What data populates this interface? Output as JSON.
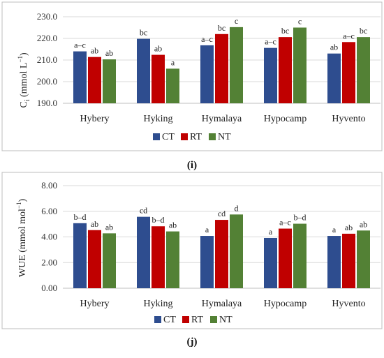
{
  "colors": {
    "CT": "#2e4d8f",
    "RT": "#c00000",
    "NT": "#538135"
  },
  "chart_data": [
    {
      "type": "bar",
      "panel_label": "(i)",
      "ylabel_main": "C",
      "ylabel_sub": "i",
      "ylabel_units": " (mmol L",
      "ylabel_sup": "−1",
      "ylabel_close": ")",
      "ylim": [
        190,
        230
      ],
      "ytick_step": 10,
      "ytick_labels": [
        "190.0",
        "200.0",
        "210.0",
        "220.0",
        "230.0"
      ],
      "grid": true,
      "legend_position": "bottom",
      "categories": [
        "Hybery",
        "Hyking",
        "Hymalaya",
        "Hypocamp",
        "Hyvento"
      ],
      "series": [
        {
          "name": "CT",
          "values": [
            214.0,
            219.8,
            216.8,
            215.6,
            213.0
          ],
          "labels": [
            "a–c",
            "bc",
            "a–c",
            "a–c",
            "ab"
          ]
        },
        {
          "name": "RT",
          "values": [
            211.4,
            212.4,
            222.0,
            220.6,
            218.3
          ],
          "labels": [
            "ab",
            "ab",
            "bc",
            "bc",
            "a–c"
          ]
        },
        {
          "name": "NT",
          "values": [
            210.3,
            206.0,
            225.2,
            225.0,
            220.6
          ],
          "labels": [
            "ab",
            "a",
            "c",
            "c",
            "bc"
          ]
        }
      ]
    },
    {
      "type": "bar",
      "panel_label": "(j)",
      "ylabel_main": "WUE",
      "ylabel_sub": "",
      "ylabel_units": " (mmol mol",
      "ylabel_sup": "−1",
      "ylabel_close": ")",
      "ylim": [
        0,
        8
      ],
      "ytick_step": 2,
      "ytick_labels": [
        "0.00",
        "2.00",
        "4.00",
        "6.00",
        "8.00"
      ],
      "grid": true,
      "legend_position": "bottom",
      "categories": [
        "Hybery",
        "Hyking",
        "Hymalaya",
        "Hypocamp",
        "Hyvento"
      ],
      "series": [
        {
          "name": "CT",
          "values": [
            5.07,
            5.57,
            4.08,
            3.92,
            4.08
          ],
          "labels": [
            "b–d",
            "cd",
            "a",
            "a",
            "a"
          ]
        },
        {
          "name": "RT",
          "values": [
            4.53,
            4.83,
            5.33,
            4.65,
            4.25
          ],
          "labels": [
            "ab",
            "b–d",
            "cd",
            "a–c",
            "ab"
          ]
        },
        {
          "name": "NT",
          "values": [
            4.28,
            4.43,
            5.75,
            5.03,
            4.5
          ],
          "labels": [
            "ab",
            "ab",
            "d",
            "b–d",
            "ab"
          ]
        }
      ]
    }
  ]
}
